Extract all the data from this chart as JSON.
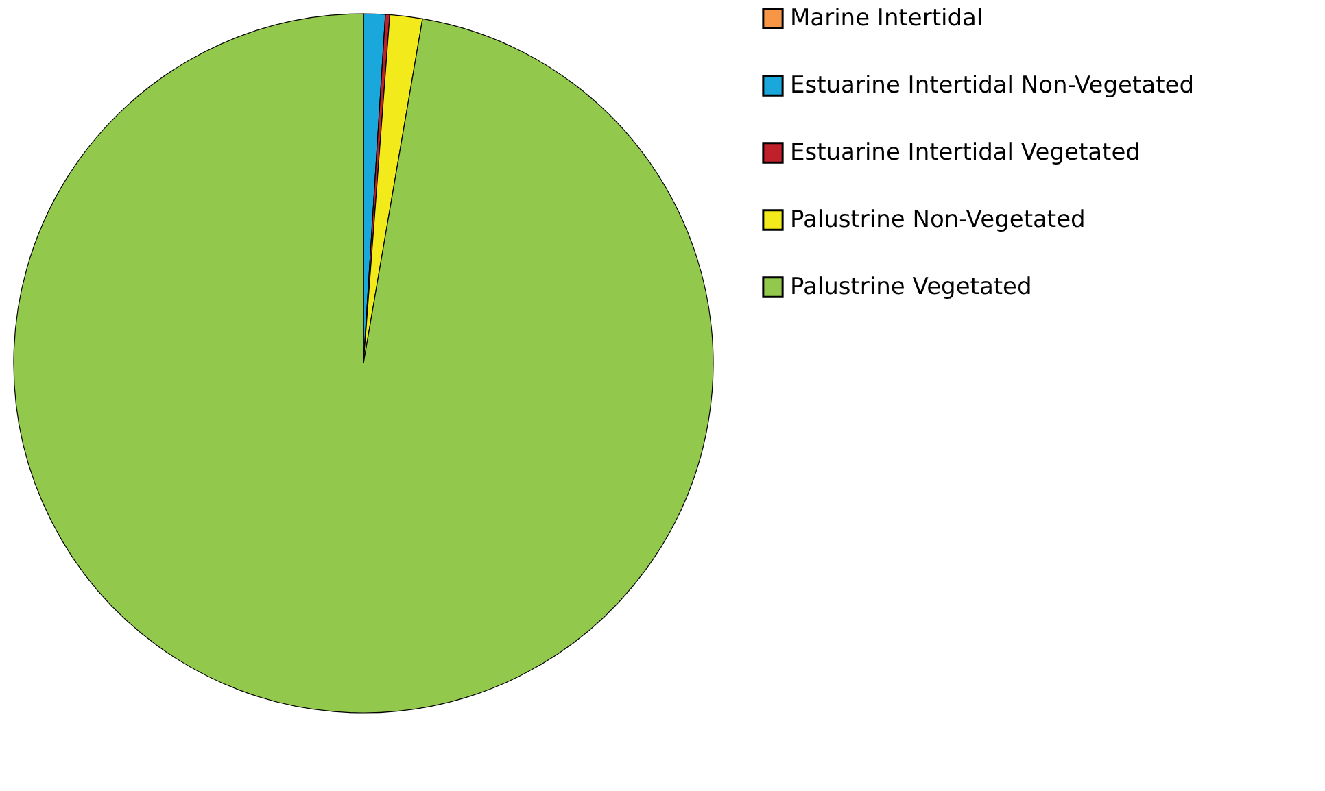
{
  "chart_data": {
    "type": "pie",
    "categories": [
      "Marine Intertidal",
      "Estuarine Intertidal Non-Vegetated",
      "Estuarine Intertidal Vegetated",
      "Palustrine Non-Vegetated",
      "Palustrine Vegetated"
    ],
    "values": [
      0,
      1.0,
      0.2,
      1.5,
      97.3
    ],
    "colors": [
      "#f79646",
      "#1aa7dc",
      "#c0202a",
      "#f2ea1b",
      "#92c84c"
    ],
    "legend": "right"
  }
}
